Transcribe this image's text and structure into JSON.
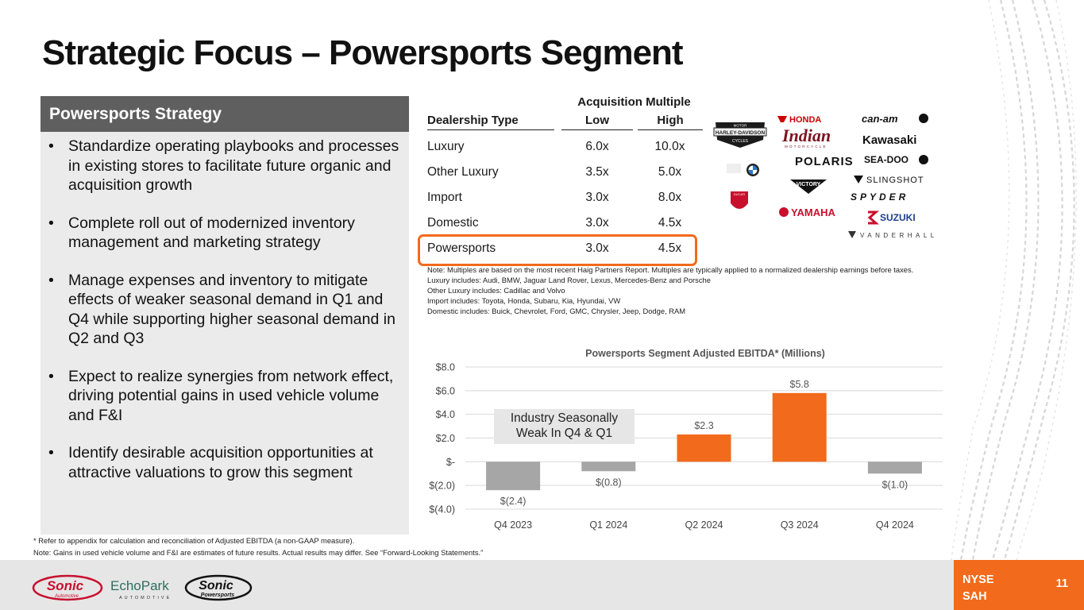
{
  "page": {
    "title": "Strategic Focus – Powersports Segment",
    "page_number": "11"
  },
  "strategy": {
    "header": "Powersports Strategy",
    "bullet_glyph": "•",
    "bullets": [
      "Standardize operating playbooks and processes in existing stores to facilitate future organic and acquisition growth",
      "Complete roll out of modernized inventory management and marketing strategy",
      "Manage expenses and inventory to mitigate effects of weaker seasonal demand in Q1 and Q4 while supporting higher seasonal demand in Q2 and Q3",
      "Expect to realize synergies from network effect, driving potential gains in used vehicle volume and F&I",
      "Identify desirable acquisition opportunities at attractive valuations to grow this segment"
    ]
  },
  "multiples_table": {
    "supra_header": "Acquisition Multiple",
    "headers": [
      "Dealership Type",
      "Low",
      "High"
    ],
    "rows": [
      [
        "Luxury",
        "6.0x",
        "10.0x"
      ],
      [
        "Other Luxury",
        "3.5x",
        "5.0x"
      ],
      [
        "Import",
        "3.0x",
        "8.0x"
      ],
      [
        "Domestic",
        "3.0x",
        "4.5x"
      ],
      [
        "Powersports",
        "3.0x",
        "4.5x"
      ]
    ],
    "highlight_color": "#f26a1b"
  },
  "brand_logos": {
    "harley": [
      "HARLEY-DAVIDSON",
      "MOTOR",
      "CYCLES"
    ],
    "ducati": "DUCATI",
    "honda": "HONDA",
    "indian": "Indian",
    "indian_sub": "MOTORCYCLE",
    "polaris": "POLARIS",
    "victory": "VICTORY",
    "yamaha": "YAMAHA",
    "canam": "can-am",
    "kawasaki": "Kawasaki",
    "seadoo": "SEA-DOO",
    "slingshot": "SLINGSHOT",
    "spyder": "SPYDER",
    "suzuki": "SUZUKI",
    "vanderhall": "VANDERHALL"
  },
  "notes": [
    "Note: Multiples are based on the most recent Haig Partners Report. Multiples are typically applied to a normalized dealership earnings before taxes.",
    "Luxury includes: Audi, BMW, Jaguar Land Rover, Lexus, Mercedes-Benz and Porsche",
    "Other Luxury includes: Cadillac and Volvo",
    "Import includes: Toyota, Honda, Subaru, Kia, Hyundai, VW",
    "Domestic includes: Buick, Chevrolet, Ford, GMC, Chrysler, Jeep, Dodge, RAM"
  ],
  "chart_data": {
    "type": "bar",
    "title": "Powersports Segment Adjusted EBITDA* (Millions)",
    "categories": [
      "Q4 2023",
      "Q1 2024",
      "Q2 2024",
      "Q3 2024",
      "Q4 2024"
    ],
    "values": [
      -2.4,
      -0.8,
      2.3,
      5.8,
      -1.0
    ],
    "data_labels": [
      "$(2.4)",
      "$(0.8)",
      "$2.3",
      "$5.8",
      "$(1.0)"
    ],
    "bar_colors": [
      "#a6a6a6",
      "#a6a6a6",
      "#f26a1b",
      "#f26a1b",
      "#a6a6a6"
    ],
    "ylim": [
      -4,
      8
    ],
    "yticks": [
      8,
      6,
      4,
      2,
      0,
      -2,
      -4
    ],
    "ytick_labels": [
      "$8.0",
      "$6.0",
      "$4.0",
      "$2.0",
      "$-",
      "$(2.0)",
      "$(4.0)"
    ],
    "grid": true,
    "xlabel": "",
    "ylabel": "",
    "annotation": "Industry Seasonally Weak In Q4 & Q1"
  },
  "footnotes": [
    "* Refer to appendix for calculation and reconciliation of Adjusted EBITDA (a non-GAAP measure).",
    "Note: Gains in used vehicle volume and F&I are estimates of future results. Actual results may differ. See “Forward-Looking Statements.”"
  ],
  "footer": {
    "exchange": "NYSE",
    "ticker": "SAH",
    "sonic_logo": "Sonic",
    "sonic_logo_sub": "Automotive",
    "echopark_logo": "EchoPark",
    "echopark_sub": "AUTOMOTIVE",
    "sonic_ps_logo": "Sonic",
    "sonic_ps_sub": "Powersports"
  },
  "colors": {
    "accent": "#f26a1b",
    "gray_bar": "#a6a6a6",
    "panel_header": "#5f5f5f",
    "panel_bg": "#ebebeb",
    "footer_bg": "#e6e6e6"
  }
}
